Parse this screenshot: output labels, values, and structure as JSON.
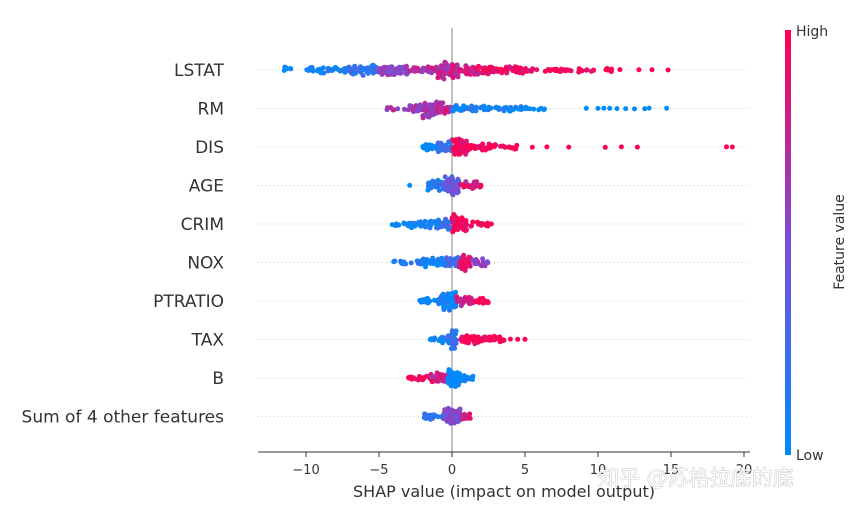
{
  "chart_data": {
    "type": "scatter",
    "subtype": "shap-beeswarm",
    "xlabel": "SHAP value (impact on model output)",
    "xlim": [
      -13,
      20.5
    ],
    "x_ticks": [
      -10,
      -5,
      0,
      5,
      10,
      15,
      20
    ],
    "x_tick_labels": [
      "−10",
      "−5",
      "0",
      "5",
      "10",
      "15",
      "20"
    ],
    "colorbar": {
      "label": "Feature value",
      "high_label": "High",
      "low_label": "Low",
      "low_color": "#008bfb",
      "high_color": "#ff0052"
    },
    "features": [
      {
        "name": "LSTAT",
        "clusters": [
          [
            -11.5,
            -11,
            6,
            -0.9
          ],
          [
            -10,
            -7,
            40,
            -0.8
          ],
          [
            -7,
            -5,
            55,
            -0.6
          ],
          [
            -5,
            -3,
            55,
            0.1
          ],
          [
            -3,
            -1,
            35,
            0.4
          ],
          [
            -1,
            0.5,
            75,
            0.5
          ],
          [
            0.5,
            2.5,
            45,
            0.7
          ],
          [
            2.5,
            5,
            50,
            0.9
          ],
          [
            5,
            9,
            35,
            1
          ],
          [
            9,
            11,
            12,
            1
          ]
        ],
        "outliers": [
          [
            11.5,
            1
          ],
          [
            12.8,
            1
          ],
          [
            13.7,
            1
          ],
          [
            14.8,
            1
          ]
        ]
      },
      {
        "name": "RM",
        "clusters": [
          [
            -4.5,
            -3,
            8,
            0.3
          ],
          [
            -3,
            -2,
            25,
            0.25
          ],
          [
            -2,
            -1,
            55,
            0.25
          ],
          [
            -1,
            0,
            35,
            0.55
          ],
          [
            0,
            2,
            30,
            -0.85
          ],
          [
            2,
            4,
            25,
            -0.9
          ],
          [
            4,
            6.5,
            18,
            -1
          ]
        ],
        "outliers": [
          [
            9.2,
            -1
          ],
          [
            10,
            -1
          ],
          [
            10.4,
            -1
          ],
          [
            10.8,
            -1
          ],
          [
            11.3,
            -1
          ],
          [
            11.9,
            -1
          ],
          [
            12.5,
            -1
          ],
          [
            13.2,
            -1
          ],
          [
            13.5,
            -1
          ],
          [
            14.7,
            -1
          ]
        ]
      },
      {
        "name": "DIS",
        "clusters": [
          [
            -2,
            -1,
            15,
            -1
          ],
          [
            -1,
            0,
            35,
            -0.5
          ],
          [
            0,
            1,
            70,
            0.9
          ],
          [
            1,
            3,
            35,
            1
          ],
          [
            3,
            4.5,
            12,
            1
          ]
        ],
        "outliers": [
          [
            5.5,
            1
          ],
          [
            6.5,
            1
          ],
          [
            8,
            1
          ],
          [
            10.5,
            1
          ],
          [
            11.6,
            1
          ],
          [
            12.7,
            1
          ],
          [
            18.8,
            1
          ],
          [
            19.2,
            1
          ]
        ]
      },
      {
        "name": "AGE",
        "clusters": [
          [
            -1.7,
            -0.5,
            35,
            -0.8
          ],
          [
            -0.5,
            0.5,
            60,
            -0.2
          ],
          [
            0.5,
            2,
            28,
            0.7
          ]
        ],
        "outliers": [
          [
            -2.9,
            -1
          ]
        ]
      },
      {
        "name": "CRIM",
        "clusters": [
          [
            -4.5,
            -3,
            8,
            -0.9
          ],
          [
            -3,
            -1,
            35,
            -0.9
          ],
          [
            -1,
            0,
            30,
            -0.6
          ],
          [
            0,
            1,
            55,
            1
          ],
          [
            1,
            2.5,
            15,
            1
          ]
        ],
        "outliers": [
          [
            2.7,
            1
          ]
        ]
      },
      {
        "name": "NOX",
        "clusters": [
          [
            -4,
            -2,
            18,
            -0.7
          ],
          [
            -2,
            -0.5,
            35,
            -0.9
          ],
          [
            -0.5,
            0.5,
            30,
            -0.4
          ],
          [
            0.5,
            1.3,
            35,
            0.9
          ],
          [
            1.3,
            2.5,
            20,
            0.1
          ]
        ],
        "outliers": []
      },
      {
        "name": "PTRATIO",
        "clusters": [
          [
            -2.3,
            -1,
            18,
            -1
          ],
          [
            -1,
            0.3,
            80,
            -0.9
          ],
          [
            0.3,
            1.5,
            30,
            0.6
          ],
          [
            1.5,
            2.5,
            12,
            1
          ]
        ],
        "outliers": []
      },
      {
        "name": "TAX",
        "clusters": [
          [
            -1.5,
            -0.3,
            18,
            -0.9
          ],
          [
            -0.3,
            0.3,
            40,
            -0.6
          ],
          [
            0.3,
            2,
            35,
            1
          ],
          [
            2,
            3,
            20,
            1
          ],
          [
            3,
            3.6,
            8,
            1
          ]
        ],
        "outliers": [
          [
            3.5,
            1
          ],
          [
            4,
            1
          ],
          [
            4.5,
            1
          ],
          [
            5,
            1
          ]
        ]
      },
      {
        "name": "B",
        "clusters": [
          [
            -3.2,
            -1.5,
            18,
            0.9
          ],
          [
            -1.5,
            -0.3,
            35,
            0.6
          ],
          [
            -0.3,
            0.6,
            80,
            -1
          ],
          [
            0.6,
            1.5,
            15,
            -1
          ]
        ],
        "outliers": []
      },
      {
        "name": "Sum of 4 other features",
        "clusters": [
          [
            -2,
            -0.6,
            20,
            -0.7
          ],
          [
            -0.6,
            0.6,
            60,
            0
          ],
          [
            0.6,
            1.3,
            12,
            0.7
          ]
        ],
        "outliers": []
      }
    ]
  },
  "watermark": "知乎 @苏格拉底的底"
}
